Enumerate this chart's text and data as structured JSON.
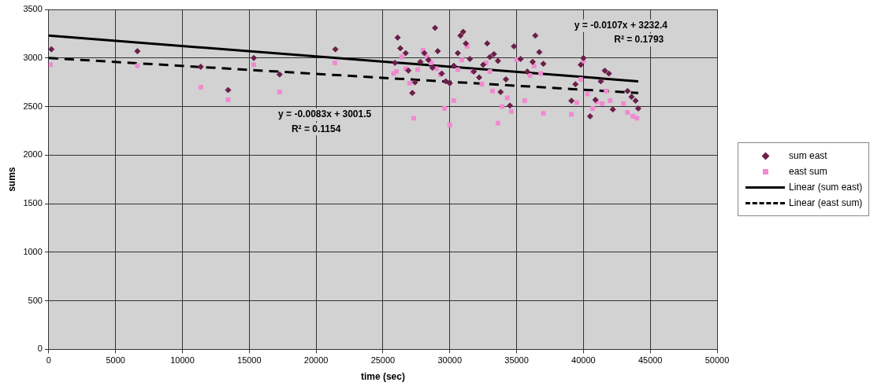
{
  "chart_data": {
    "type": "scatter",
    "xlabel": "time (sec)",
    "ylabel": "sums",
    "xlim": [
      0,
      50000
    ],
    "xticks": [
      0,
      5000,
      10000,
      15000,
      20000,
      25000,
      30000,
      35000,
      40000,
      45000,
      50000
    ],
    "ylim": [
      0,
      3500
    ],
    "yticks": [
      0,
      500,
      1000,
      1500,
      2000,
      2500,
      3000,
      3500
    ],
    "grid": true,
    "legend": "right",
    "annotations": [
      "y = -0.0107x + 3232.4",
      "R² = 0.1793",
      "y = -0.0083x + 3001.5",
      "R² = 0.1154"
    ],
    "series": [
      {
        "name": "sum east",
        "marker": "diamond",
        "color": "#6b1f4a",
        "x": [
          200,
          6630,
          11370,
          13420,
          15340,
          17270,
          21440,
          25900,
          26100,
          26300,
          26700,
          26900,
          27200,
          27400,
          27800,
          28100,
          28400,
          28700,
          28900,
          29100,
          29400,
          29700,
          30000,
          30300,
          30600,
          30800,
          31000,
          31200,
          31500,
          31800,
          32200,
          32500,
          32800,
          33000,
          33300,
          33600,
          33800,
          34200,
          34500,
          34800,
          35300,
          35800,
          36200,
          36400,
          36700,
          37000,
          39100,
          39400,
          39800,
          40000,
          40500,
          40900,
          41300,
          41600,
          41900,
          42200,
          43300,
          43600,
          43900,
          44100
        ],
        "values": [
          3090,
          3070,
          2910,
          2670,
          3000,
          2830,
          3090,
          2950,
          3210,
          3100,
          3050,
          2870,
          2640,
          2750,
          2960,
          3050,
          2980,
          2900,
          3310,
          3070,
          2840,
          2760,
          2740,
          2920,
          3050,
          3230,
          3270,
          3150,
          2990,
          2860,
          2800,
          2930,
          3150,
          3010,
          3040,
          2970,
          2650,
          2780,
          2510,
          3120,
          2990,
          2860,
          2960,
          3230,
          3060,
          2940,
          2560,
          2730,
          2930,
          3000,
          2400,
          2570,
          2760,
          2870,
          2840,
          2470,
          2660,
          2600,
          2560,
          2480
        ]
      },
      {
        "name": "east sum",
        "marker": "square",
        "color": "#f08ad0",
        "x": [
          120,
          6630,
          11370,
          13420,
          15340,
          17270,
          21400,
          25800,
          26000,
          26400,
          26700,
          27000,
          27300,
          27600,
          28000,
          28300,
          28600,
          29000,
          29300,
          29600,
          30000,
          30300,
          30600,
          30900,
          31300,
          31700,
          32400,
          32700,
          33000,
          33200,
          33600,
          33900,
          34300,
          34600,
          35000,
          35600,
          36000,
          36300,
          36800,
          37000,
          39100,
          39500,
          39800,
          40000,
          40300,
          40700,
          41000,
          41400,
          41700,
          42000,
          43000,
          43300,
          43700,
          44000
        ],
        "values": [
          2930,
          2920,
          2700,
          2570,
          2930,
          2650,
          2950,
          2840,
          2860,
          3010,
          2890,
          2740,
          2380,
          2880,
          3080,
          3010,
          2950,
          2890,
          2830,
          2480,
          2310,
          2560,
          2880,
          2980,
          3120,
          2860,
          2730,
          2950,
          2860,
          2660,
          2330,
          2500,
          2590,
          2450,
          2980,
          2560,
          2820,
          2920,
          2840,
          2430,
          2420,
          2540,
          2780,
          2970,
          2630,
          2480,
          2550,
          2530,
          2660,
          2560,
          2530,
          2440,
          2400,
          2380
        ]
      },
      {
        "name": "Linear (sum east)",
        "type": "line",
        "line_style": "solid",
        "color": "#000000",
        "x": [
          0,
          44100
        ],
        "values": [
          3230,
          2760
        ]
      },
      {
        "name": "Linear (east sum)",
        "type": "line",
        "line_style": "dashed",
        "color": "#000000",
        "x": [
          0,
          44100
        ],
        "values": [
          3000,
          2640
        ]
      }
    ]
  }
}
